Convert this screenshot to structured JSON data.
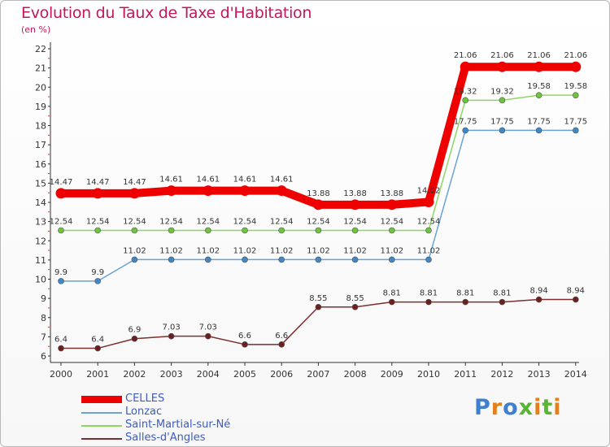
{
  "title": "Evolution du Taux de Taxe d'Habitation",
  "subtitle": "(en %)",
  "logo": "Proxiti",
  "colors": {
    "CELLES": "#ee0000",
    "Lonzac": "#6aa3d6",
    "Saint-Martial-sur-Né": "#8ed663",
    "Salles-d'Angles": "#7b2f2f",
    "title": "#c2185b",
    "legend_text": "#3b5cc4"
  },
  "chart_data": {
    "type": "line",
    "title": "Evolution du Taux de Taxe d'Habitation",
    "ylabel": "(en %)",
    "xlabel": "",
    "ylim": [
      6,
      22
    ],
    "yticks": [
      6,
      7,
      8,
      9,
      10,
      11,
      12,
      13,
      14,
      15,
      16,
      17,
      18,
      19,
      20,
      21,
      22
    ],
    "grid": false,
    "legend": "bottom-left",
    "categories": [
      "2000",
      "2001",
      "2002",
      "2003",
      "2004",
      "2005",
      "2006",
      "2007",
      "2008",
      "2009",
      "2010",
      "2011",
      "2012",
      "2013",
      "2014"
    ],
    "series": [
      {
        "name": "CELLES",
        "values": [
          14.47,
          14.47,
          14.47,
          14.61,
          14.61,
          14.61,
          14.61,
          13.88,
          13.88,
          13.88,
          14.02,
          21.06,
          21.06,
          21.06,
          21.06
        ],
        "labels": [
          "14.47",
          "14.47",
          "14.47",
          "14.61",
          "14.61",
          "14.61",
          "14.61",
          "13.88",
          "13.88",
          "13.88",
          "14.02",
          "21.06",
          "21.06",
          "21.06",
          "21.06"
        ]
      },
      {
        "name": "Lonzac",
        "values": [
          9.9,
          9.9,
          11.02,
          11.02,
          11.02,
          11.02,
          11.02,
          11.02,
          11.02,
          11.02,
          11.02,
          17.75,
          17.75,
          17.75,
          17.75
        ],
        "labels": [
          "9.9",
          "9.9",
          "11.02",
          "11.02",
          "11.02",
          "11.02",
          "11.02",
          "11.02",
          "11.02",
          "11.02",
          "11.02",
          "17.75",
          "17.75",
          "17.75",
          "17.75"
        ]
      },
      {
        "name": "Saint-Martial-sur-Né",
        "values": [
          12.54,
          12.54,
          12.54,
          12.54,
          12.54,
          12.54,
          12.54,
          12.54,
          12.54,
          12.54,
          12.54,
          19.32,
          19.32,
          19.58,
          19.58
        ],
        "labels": [
          "12.54",
          "12.54",
          "12.54",
          "12.54",
          "12.54",
          "12.54",
          "12.54",
          "12.54",
          "12.54",
          "12.54",
          "12.54",
          "19.32",
          "19.32",
          "19.58",
          "19.58"
        ]
      },
      {
        "name": "Salles-d'Angles",
        "values": [
          6.4,
          6.4,
          6.9,
          7.03,
          7.03,
          6.6,
          6.6,
          8.55,
          8.55,
          8.81,
          8.81,
          8.81,
          8.81,
          8.94,
          8.94
        ],
        "labels": [
          "6.4",
          "6.4",
          "6.9",
          "7.03",
          "7.03",
          "6.6",
          "6.6",
          "8.55",
          "8.55",
          "8.81",
          "8.81",
          "8.81",
          "8.81",
          "8.94",
          "8.94"
        ]
      }
    ]
  }
}
